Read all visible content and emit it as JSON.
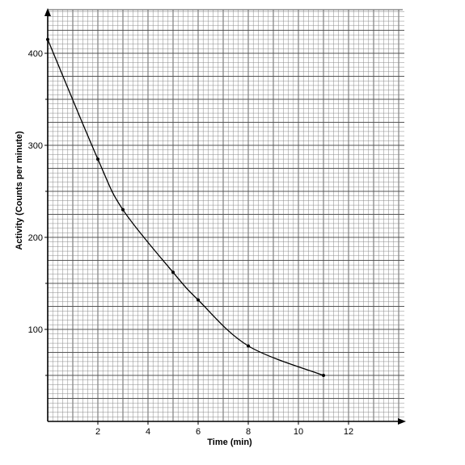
{
  "chart_data": {
    "type": "line",
    "title": "",
    "xlabel": "Time (min)",
    "ylabel": "Activity (Counts per minute)",
    "xlim": [
      0,
      14
    ],
    "ylim": [
      0,
      450
    ],
    "x_ticks": [
      2,
      4,
      6,
      8,
      10,
      12
    ],
    "y_ticks": [
      100,
      200,
      300,
      400
    ],
    "grid": true,
    "legend": "none",
    "series": [
      {
        "x": [
          0,
          2,
          3,
          5,
          6,
          8,
          11
        ],
        "y": [
          415,
          285,
          230,
          162,
          132,
          82,
          50
        ]
      }
    ]
  }
}
